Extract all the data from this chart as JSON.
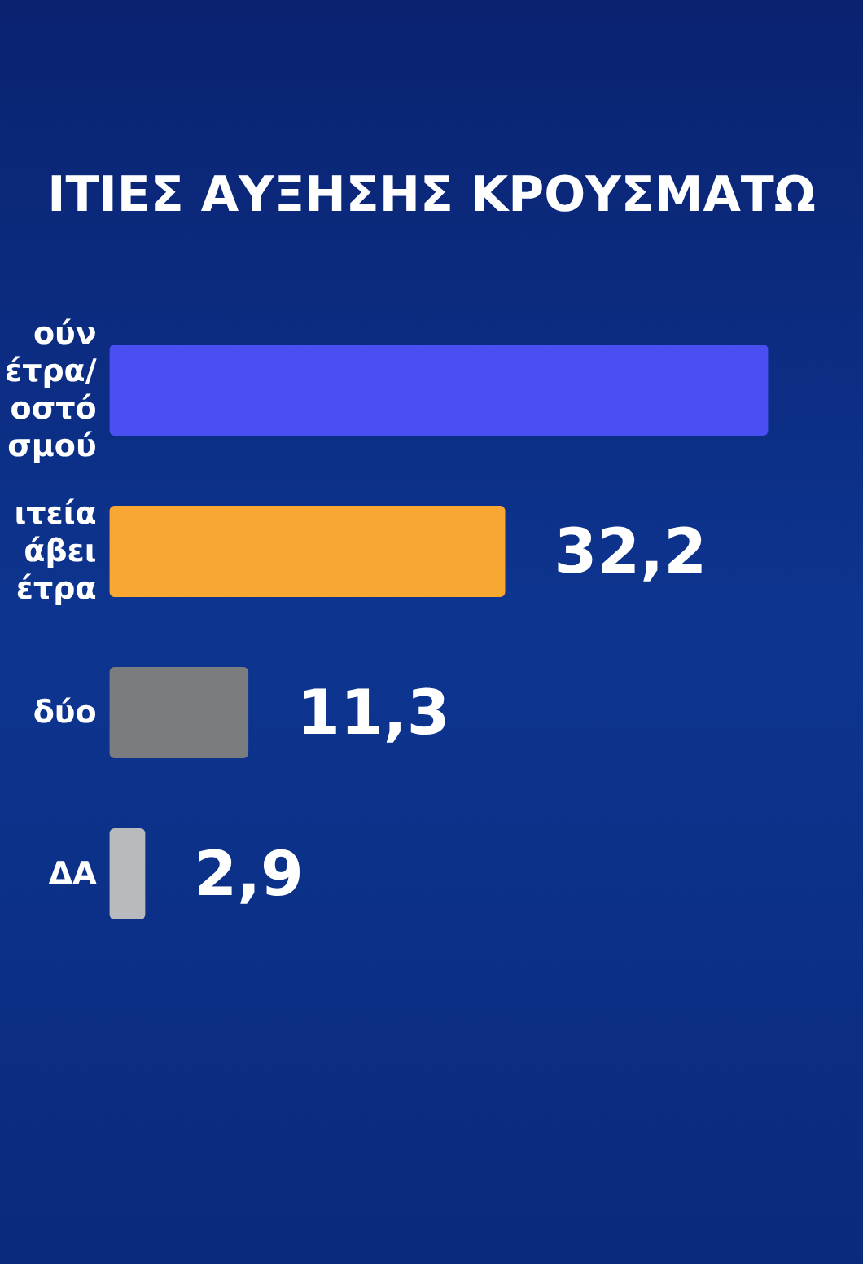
{
  "chart_data": {
    "type": "bar",
    "orientation": "horizontal",
    "title": "ΙΤΙΕΣ ΑΥΞΗΣΗΣ ΚΡΟΥΣΜΑΤΩ",
    "categories": [
      "ούν\nέτρα/\nοστό\nσμού",
      "ιτεία\nάβει\nέτρα",
      "δύο",
      "ΔΑ"
    ],
    "values": [
      53.6,
      32.2,
      11.3,
      2.9
    ],
    "colors": [
      "#4b4ff2",
      "#f9a733",
      "#7b7c80",
      "#b9babd"
    ],
    "value_labels": [
      null,
      "32,2",
      "11,3",
      "2,9"
    ]
  }
}
